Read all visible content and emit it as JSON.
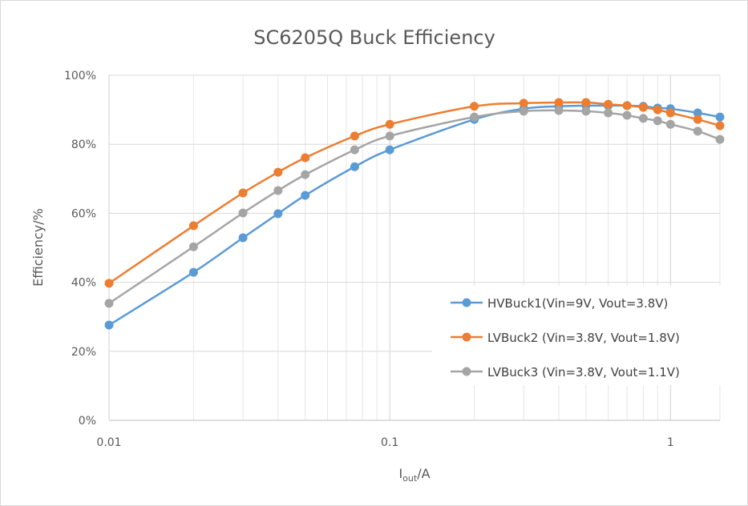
{
  "chart_data": {
    "type": "line",
    "title": "SC6205Q Buck Efficiency",
    "xlabel": {
      "main": "I",
      "sub": "out",
      "unit": "/A"
    },
    "ylabel": "Efficiency/%",
    "xscale": "log",
    "xlim": [
      0.01,
      1.5
    ],
    "ylim": [
      0,
      100
    ],
    "grid": true,
    "legend_position": "bottom-right",
    "x_tick_labels": [
      "0.01",
      "0.1",
      "1"
    ],
    "x_ticks": [
      0.01,
      0.1,
      1
    ],
    "y_ticks": [
      0,
      20,
      40,
      60,
      80,
      100
    ],
    "y_tick_labels": [
      "0%",
      "20%",
      "40%",
      "60%",
      "80%",
      "100%"
    ],
    "x": [
      0.01,
      0.02,
      0.03,
      0.04,
      0.05,
      0.075,
      0.1,
      0.2,
      0.3,
      0.4,
      0.5,
      0.6,
      0.7,
      0.8,
      0.9,
      1.0,
      1.25,
      1.5
    ],
    "series": [
      {
        "name": "HVBuck1(Vin=9V, Vout=3.8V)",
        "color": "#5b9bd5",
        "values": [
          27.6,
          42.9,
          52.9,
          59.9,
          65.2,
          73.5,
          78.4,
          87.2,
          90.3,
          91.0,
          91.2,
          91.2,
          91.2,
          91.0,
          90.5,
          90.3,
          89.1,
          87.9
        ]
      },
      {
        "name": "LVBuck2 (Vin=3.8V, Vout=1.8V)",
        "color": "#ed7d31",
        "values": [
          39.7,
          56.4,
          65.9,
          71.9,
          76.1,
          82.4,
          85.8,
          91.0,
          91.9,
          92.1,
          92.1,
          91.6,
          91.2,
          90.7,
          90.0,
          89.1,
          87.2,
          85.4
        ]
      },
      {
        "name": "LVBuck3 (Vin=3.8V, Vout=1.1V)",
        "color": "#a5a5a5",
        "values": [
          33.9,
          50.3,
          60.1,
          66.6,
          71.2,
          78.4,
          82.4,
          87.9,
          89.6,
          89.8,
          89.6,
          89.1,
          88.4,
          87.5,
          86.8,
          85.8,
          83.8,
          81.4
        ]
      }
    ]
  }
}
